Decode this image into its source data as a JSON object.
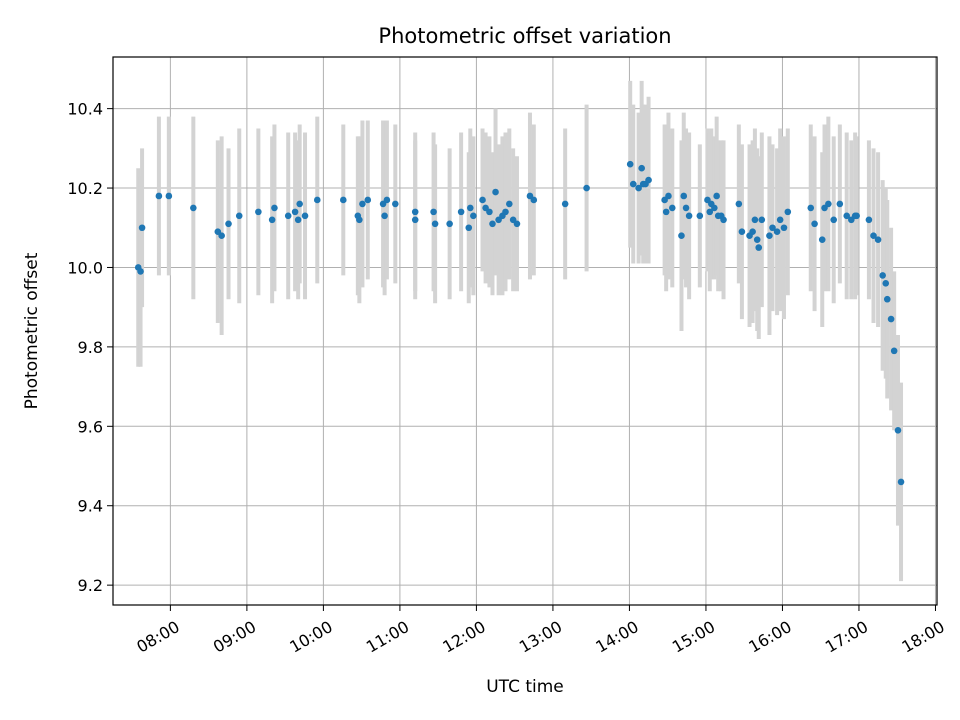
{
  "chart_data": {
    "type": "scatter",
    "title": "Photometric offset variation",
    "xlabel": "UTC time",
    "ylabel": "Photometric offset",
    "x_unit": "hours UTC",
    "xlim": [
      7.25,
      18.02
    ],
    "ylim": [
      9.15,
      10.53
    ],
    "grid": true,
    "x_tick_labels": [
      "08:00",
      "09:00",
      "10:00",
      "11:00",
      "12:00",
      "13:00",
      "14:00",
      "15:00",
      "16:00",
      "17:00",
      "18:00"
    ],
    "x_tick_values": [
      8,
      9,
      10,
      11,
      12,
      13,
      14,
      15,
      16,
      17,
      18
    ],
    "y_tick_labels": [
      "9.2",
      "9.4",
      "9.6",
      "9.8",
      "10.0",
      "10.2",
      "10.4"
    ],
    "y_tick_values": [
      9.2,
      9.4,
      9.6,
      9.8,
      10.0,
      10.2,
      10.4
    ],
    "point_color": "#1f77b4",
    "errorbar_color": "#d3d3d3",
    "series": [
      {
        "x": [
          7.58,
          7.61,
          7.63,
          7.85,
          7.98,
          8.3,
          8.62,
          8.67,
          8.76,
          8.9,
          9.15,
          9.33,
          9.36,
          9.54,
          9.63,
          9.67,
          9.69,
          9.76,
          9.92,
          10.26,
          10.45,
          10.47,
          10.51,
          10.58,
          10.78,
          10.8,
          10.83,
          10.94,
          11.2,
          11.2,
          11.44,
          11.46,
          11.65,
          11.8,
          11.9,
          11.92,
          11.96,
          12.08,
          12.12,
          12.17,
          12.21,
          12.25,
          12.29,
          12.34,
          12.38,
          12.43,
          12.48,
          12.53,
          12.7,
          12.75,
          13.16,
          13.44,
          14.01,
          14.05,
          14.12,
          14.16,
          14.18,
          14.21,
          14.25,
          14.46,
          14.48,
          14.51,
          14.56,
          14.68,
          14.71,
          14.74,
          14.78,
          14.92,
          15.02,
          15.05,
          15.07,
          15.11,
          15.14,
          15.16,
          15.2,
          15.23,
          15.43,
          15.47,
          15.57,
          15.61,
          15.64,
          15.67,
          15.69,
          15.73,
          15.83,
          15.87,
          15.93,
          15.97,
          16.02,
          16.07,
          16.37,
          16.42,
          16.52,
          16.55,
          16.6,
          16.67,
          16.75,
          16.84,
          16.9,
          16.95,
          16.97,
          17.13,
          17.19,
          17.25,
          17.31,
          17.35,
          17.37,
          17.42,
          17.46,
          17.51,
          17.55
        ],
        "y": [
          10.0,
          9.99,
          10.1,
          10.18,
          10.18,
          10.15,
          10.09,
          10.08,
          10.11,
          10.13,
          10.14,
          10.12,
          10.15,
          10.13,
          10.14,
          10.12,
          10.16,
          10.13,
          10.17,
          10.17,
          10.13,
          10.12,
          10.16,
          10.17,
          10.16,
          10.13,
          10.17,
          10.16,
          10.14,
          10.12,
          10.14,
          10.11,
          10.11,
          10.14,
          10.1,
          10.15,
          10.13,
          10.17,
          10.15,
          10.14,
          10.11,
          10.19,
          10.12,
          10.13,
          10.14,
          10.16,
          10.12,
          10.11,
          10.18,
          10.17,
          10.16,
          10.2,
          10.26,
          10.21,
          10.2,
          10.25,
          10.21,
          10.21,
          10.22,
          10.17,
          10.14,
          10.18,
          10.15,
          10.08,
          10.18,
          10.15,
          10.13,
          10.13,
          10.17,
          10.14,
          10.16,
          10.15,
          10.18,
          10.13,
          10.13,
          10.12,
          10.16,
          10.09,
          10.08,
          10.09,
          10.12,
          10.07,
          10.05,
          10.12,
          10.08,
          10.1,
          10.09,
          10.12,
          10.1,
          10.14,
          10.15,
          10.11,
          10.07,
          10.15,
          10.16,
          10.12,
          10.16,
          10.13,
          10.12,
          10.13,
          10.13,
          10.12,
          10.08,
          10.07,
          9.98,
          9.96,
          9.92,
          9.87,
          9.79,
          9.59,
          9.46
        ],
        "yerr": [
          0.25,
          0.24,
          0.2,
          0.2,
          0.2,
          0.23,
          0.23,
          0.25,
          0.19,
          0.22,
          0.21,
          0.21,
          0.21,
          0.21,
          0.2,
          0.2,
          0.2,
          0.21,
          0.21,
          0.19,
          0.2,
          0.21,
          0.21,
          0.2,
          0.21,
          0.2,
          0.2,
          0.2,
          0.2,
          0.2,
          0.2,
          0.2,
          0.19,
          0.2,
          0.19,
          0.2,
          0.2,
          0.18,
          0.19,
          0.19,
          0.18,
          0.21,
          0.19,
          0.2,
          0.2,
          0.19,
          0.18,
          0.17,
          0.21,
          0.19,
          0.19,
          0.21,
          0.21,
          0.2,
          0.19,
          0.22,
          0.2,
          0.2,
          0.21,
          0.19,
          0.2,
          0.21,
          0.2,
          0.24,
          0.21,
          0.2,
          0.21,
          0.18,
          0.18,
          0.2,
          0.19,
          0.18,
          0.2,
          0.19,
          0.19,
          0.2,
          0.2,
          0.22,
          0.23,
          0.23,
          0.23,
          0.23,
          0.23,
          0.22,
          0.25,
          0.21,
          0.21,
          0.23,
          0.23,
          0.21,
          0.21,
          0.22,
          0.22,
          0.21,
          0.22,
          0.21,
          0.2,
          0.21,
          0.2,
          0.21,
          0.2,
          0.2,
          0.22,
          0.22,
          0.24,
          0.24,
          0.25,
          0.23,
          0.2,
          0.24,
          0.25
        ]
      }
    ]
  }
}
